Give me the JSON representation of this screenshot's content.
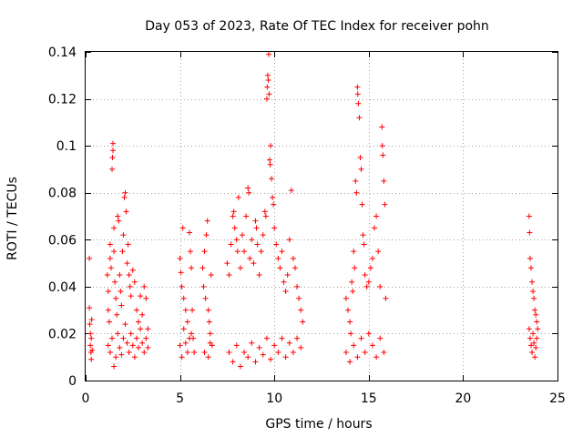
{
  "chart_data": {
    "type": "scatter",
    "title": "Day 053 of 2023, Rate Of TEC Index for receiver pohn",
    "xlabel": "GPS time / hours",
    "ylabel": "ROTI / TECUs",
    "xlim": [
      0,
      25
    ],
    "ylim": [
      0,
      0.14
    ],
    "x_ticks": [
      0,
      5,
      10,
      15,
      20,
      25
    ],
    "x_tick_labels": [
      "0",
      "5",
      "10",
      "15",
      "20",
      "25"
    ],
    "y_ticks": [
      0,
      0.02,
      0.04,
      0.06,
      0.08,
      0.1,
      0.12,
      0.14
    ],
    "y_tick_labels": [
      "0",
      "0.02",
      "0.04",
      "0.06",
      "0.08",
      "0.1",
      "0.12",
      "0.14"
    ],
    "grid": true,
    "marker": "+",
    "marker_color": "#ff0000",
    "series": [
      {
        "name": "ROTI",
        "points": [
          [
            0.2,
            0.052
          ],
          [
            0.2,
            0.031
          ],
          [
            0.22,
            0.024
          ],
          [
            0.25,
            0.02
          ],
          [
            0.25,
            0.015
          ],
          [
            0.28,
            0.012
          ],
          [
            0.3,
            0.009
          ],
          [
            0.3,
            0.018
          ],
          [
            0.32,
            0.026
          ],
          [
            0.35,
            0.013
          ],
          [
            1.15,
            0.045
          ],
          [
            1.2,
            0.038
          ],
          [
            1.2,
            0.03
          ],
          [
            1.25,
            0.025
          ],
          [
            1.3,
            0.058
          ],
          [
            1.3,
            0.052
          ],
          [
            1.35,
            0.048
          ],
          [
            1.4,
            0.09
          ],
          [
            1.42,
            0.095
          ],
          [
            1.45,
            0.101
          ],
          [
            1.45,
            0.098
          ],
          [
            1.5,
            0.065
          ],
          [
            1.5,
            0.055
          ],
          [
            1.55,
            0.042
          ],
          [
            1.6,
            0.035
          ],
          [
            1.65,
            0.028
          ],
          [
            1.7,
            0.07
          ],
          [
            1.75,
            0.068
          ],
          [
            1.8,
            0.045
          ],
          [
            1.85,
            0.038
          ],
          [
            1.9,
            0.032
          ],
          [
            1.95,
            0.055
          ],
          [
            2.0,
            0.062
          ],
          [
            2.05,
            0.078
          ],
          [
            2.1,
            0.08
          ],
          [
            2.15,
            0.072
          ],
          [
            2.2,
            0.05
          ],
          [
            2.25,
            0.058
          ],
          [
            2.3,
            0.045
          ],
          [
            2.35,
            0.04
          ],
          [
            2.4,
            0.036
          ],
          [
            2.5,
            0.047
          ],
          [
            2.6,
            0.042
          ],
          [
            2.7,
            0.03
          ],
          [
            2.8,
            0.025
          ],
          [
            2.9,
            0.036
          ],
          [
            3.0,
            0.028
          ],
          [
            3.1,
            0.04
          ],
          [
            3.2,
            0.035
          ],
          [
            3.3,
            0.022
          ],
          [
            1.2,
            0.015
          ],
          [
            1.3,
            0.012
          ],
          [
            1.4,
            0.018
          ],
          [
            1.5,
            0.006
          ],
          [
            1.6,
            0.01
          ],
          [
            1.7,
            0.02
          ],
          [
            1.8,
            0.014
          ],
          [
            1.9,
            0.011
          ],
          [
            2.0,
            0.018
          ],
          [
            2.1,
            0.024
          ],
          [
            2.2,
            0.016
          ],
          [
            2.3,
            0.012
          ],
          [
            2.4,
            0.02
          ],
          [
            2.5,
            0.015
          ],
          [
            2.6,
            0.01
          ],
          [
            2.7,
            0.018
          ],
          [
            2.8,
            0.014
          ],
          [
            2.9,
            0.022
          ],
          [
            3.0,
            0.016
          ],
          [
            3.1,
            0.012
          ],
          [
            3.2,
            0.018
          ],
          [
            3.3,
            0.014
          ],
          [
            5.0,
            0.052
          ],
          [
            5.05,
            0.046
          ],
          [
            5.1,
            0.04
          ],
          [
            5.15,
            0.065
          ],
          [
            5.2,
            0.035
          ],
          [
            5.3,
            0.03
          ],
          [
            5.4,
            0.025
          ],
          [
            5.5,
            0.063
          ],
          [
            5.55,
            0.055
          ],
          [
            5.6,
            0.048
          ],
          [
            5.6,
            0.02
          ],
          [
            5.65,
            0.03
          ],
          [
            5.7,
            0.018
          ],
          [
            5.75,
            0.012
          ],
          [
            5.0,
            0.015
          ],
          [
            5.1,
            0.01
          ],
          [
            5.2,
            0.022
          ],
          [
            5.3,
            0.016
          ],
          [
            5.4,
            0.012
          ],
          [
            5.5,
            0.018
          ],
          [
            6.2,
            0.048
          ],
          [
            6.25,
            0.04
          ],
          [
            6.3,
            0.055
          ],
          [
            6.35,
            0.035
          ],
          [
            6.4,
            0.062
          ],
          [
            6.45,
            0.068
          ],
          [
            6.5,
            0.03
          ],
          [
            6.55,
            0.025
          ],
          [
            6.6,
            0.02
          ],
          [
            6.65,
            0.045
          ],
          [
            6.7,
            0.015
          ],
          [
            6.3,
            0.012
          ],
          [
            6.5,
            0.01
          ],
          [
            6.6,
            0.016
          ],
          [
            7.5,
            0.05
          ],
          [
            7.6,
            0.045
          ],
          [
            7.7,
            0.058
          ],
          [
            7.8,
            0.07
          ],
          [
            7.85,
            0.072
          ],
          [
            7.9,
            0.065
          ],
          [
            8.0,
            0.06
          ],
          [
            8.05,
            0.055
          ],
          [
            8.1,
            0.078
          ],
          [
            8.2,
            0.048
          ],
          [
            8.3,
            0.062
          ],
          [
            8.4,
            0.055
          ],
          [
            8.5,
            0.07
          ],
          [
            8.6,
            0.082
          ],
          [
            8.65,
            0.08
          ],
          [
            8.7,
            0.052
          ],
          [
            8.8,
            0.06
          ],
          [
            8.9,
            0.05
          ],
          [
            9.0,
            0.068
          ],
          [
            9.05,
            0.065
          ],
          [
            9.1,
            0.058
          ],
          [
            9.2,
            0.045
          ],
          [
            9.3,
            0.055
          ],
          [
            9.4,
            0.062
          ],
          [
            9.5,
            0.072
          ],
          [
            9.55,
            0.07
          ],
          [
            9.6,
            0.12
          ],
          [
            9.62,
            0.125
          ],
          [
            9.65,
            0.13
          ],
          [
            9.68,
            0.128
          ],
          [
            9.7,
            0.139
          ],
          [
            9.72,
            0.122
          ],
          [
            9.75,
            0.094
          ],
          [
            9.78,
            0.092
          ],
          [
            9.8,
            0.1
          ],
          [
            9.85,
            0.086
          ],
          [
            9.9,
            0.078
          ],
          [
            9.95,
            0.075
          ],
          [
            10.0,
            0.065
          ],
          [
            10.1,
            0.058
          ],
          [
            10.2,
            0.052
          ],
          [
            10.3,
            0.048
          ],
          [
            10.4,
            0.055
          ],
          [
            10.5,
            0.042
          ],
          [
            10.6,
            0.038
          ],
          [
            10.7,
            0.045
          ],
          [
            10.8,
            0.06
          ],
          [
            10.9,
            0.081
          ],
          [
            11.0,
            0.052
          ],
          [
            11.1,
            0.048
          ],
          [
            11.2,
            0.04
          ],
          [
            11.3,
            0.035
          ],
          [
            11.4,
            0.03
          ],
          [
            11.5,
            0.025
          ],
          [
            7.6,
            0.012
          ],
          [
            7.8,
            0.008
          ],
          [
            8.0,
            0.015
          ],
          [
            8.2,
            0.006
          ],
          [
            8.4,
            0.012
          ],
          [
            8.6,
            0.01
          ],
          [
            8.8,
            0.016
          ],
          [
            9.0,
            0.008
          ],
          [
            9.2,
            0.014
          ],
          [
            9.4,
            0.011
          ],
          [
            9.6,
            0.018
          ],
          [
            9.8,
            0.009
          ],
          [
            10.0,
            0.015
          ],
          [
            10.2,
            0.012
          ],
          [
            10.4,
            0.018
          ],
          [
            10.6,
            0.01
          ],
          [
            10.8,
            0.016
          ],
          [
            11.0,
            0.012
          ],
          [
            11.2,
            0.018
          ],
          [
            11.4,
            0.014
          ],
          [
            13.8,
            0.035
          ],
          [
            13.9,
            0.03
          ],
          [
            14.0,
            0.025
          ],
          [
            14.05,
            0.02
          ],
          [
            14.1,
            0.042
          ],
          [
            14.15,
            0.038
          ],
          [
            14.2,
            0.055
          ],
          [
            14.25,
            0.048
          ],
          [
            14.3,
            0.085
          ],
          [
            14.35,
            0.08
          ],
          [
            14.4,
            0.125
          ],
          [
            14.42,
            0.122
          ],
          [
            14.45,
            0.118
          ],
          [
            14.5,
            0.112
          ],
          [
            14.55,
            0.095
          ],
          [
            14.6,
            0.09
          ],
          [
            14.65,
            0.075
          ],
          [
            14.7,
            0.062
          ],
          [
            14.75,
            0.058
          ],
          [
            14.8,
            0.045
          ],
          [
            14.9,
            0.04
          ],
          [
            15.0,
            0.042
          ],
          [
            15.1,
            0.048
          ],
          [
            15.2,
            0.052
          ],
          [
            15.3,
            0.065
          ],
          [
            15.4,
            0.07
          ],
          [
            15.5,
            0.055
          ],
          [
            15.6,
            0.04
          ],
          [
            15.7,
            0.108
          ],
          [
            15.72,
            0.1
          ],
          [
            15.75,
            0.096
          ],
          [
            15.8,
            0.085
          ],
          [
            15.85,
            0.075
          ],
          [
            15.9,
            0.035
          ],
          [
            13.8,
            0.012
          ],
          [
            14.0,
            0.008
          ],
          [
            14.2,
            0.015
          ],
          [
            14.4,
            0.01
          ],
          [
            14.6,
            0.018
          ],
          [
            14.8,
            0.012
          ],
          [
            15.0,
            0.02
          ],
          [
            15.2,
            0.015
          ],
          [
            15.4,
            0.01
          ],
          [
            15.6,
            0.018
          ],
          [
            15.8,
            0.012
          ],
          [
            23.5,
            0.07
          ],
          [
            23.52,
            0.063
          ],
          [
            23.55,
            0.052
          ],
          [
            23.6,
            0.048
          ],
          [
            23.65,
            0.042
          ],
          [
            23.7,
            0.038
          ],
          [
            23.75,
            0.035
          ],
          [
            23.8,
            0.03
          ],
          [
            23.85,
            0.028
          ],
          [
            23.9,
            0.025
          ],
          [
            23.5,
            0.022
          ],
          [
            23.55,
            0.018
          ],
          [
            23.6,
            0.015
          ],
          [
            23.65,
            0.012
          ],
          [
            23.7,
            0.02
          ],
          [
            23.75,
            0.016
          ],
          [
            23.8,
            0.01
          ],
          [
            23.85,
            0.014
          ],
          [
            23.9,
            0.018
          ],
          [
            23.95,
            0.022
          ]
        ]
      }
    ]
  }
}
